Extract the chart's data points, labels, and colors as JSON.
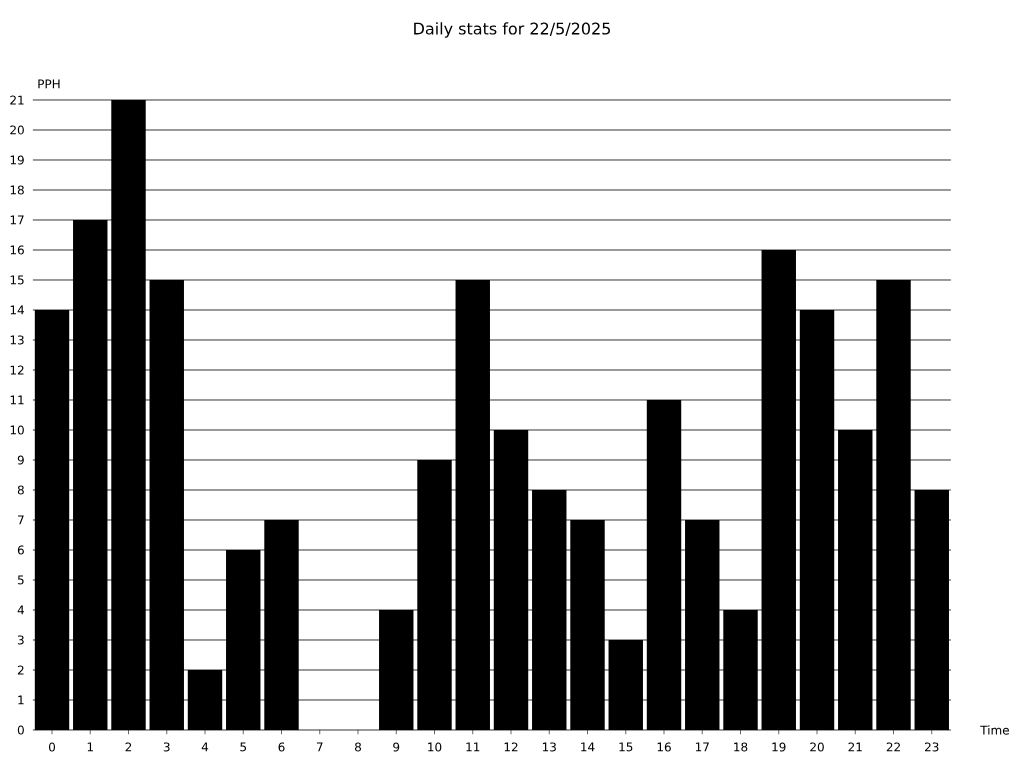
{
  "chart_data": {
    "type": "bar",
    "title": "Daily stats for 22/5/2025",
    "xlabel": "Time",
    "ylabel": "PPH",
    "categories": [
      "0",
      "1",
      "2",
      "3",
      "4",
      "5",
      "6",
      "7",
      "8",
      "9",
      "10",
      "11",
      "12",
      "13",
      "14",
      "15",
      "16",
      "17",
      "18",
      "19",
      "20",
      "21",
      "22",
      "23"
    ],
    "values": [
      14,
      17,
      21,
      15,
      2,
      6,
      7,
      0,
      0,
      4,
      9,
      15,
      10,
      8,
      7,
      3,
      11,
      7,
      4,
      16,
      14,
      10,
      15,
      8
    ],
    "color": "#000000",
    "ylim": [
      0,
      21
    ],
    "yticks": [
      0,
      1,
      2,
      3,
      4,
      5,
      6,
      7,
      8,
      9,
      10,
      11,
      12,
      13,
      14,
      15,
      16,
      17,
      18,
      19,
      20,
      21
    ],
    "grid": "y"
  }
}
